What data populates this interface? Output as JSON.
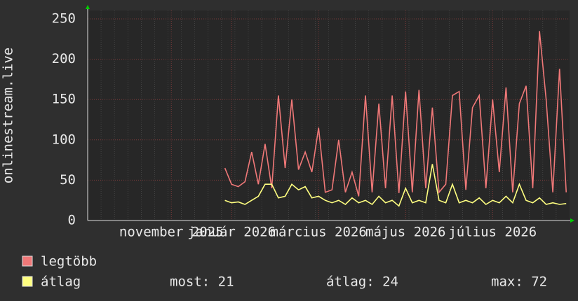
{
  "chart_data": {
    "type": "line",
    "ylabel": "onlinestream.live",
    "categories": [
      null,
      null,
      null,
      null,
      null,
      null,
      null,
      null,
      null,
      null,
      null,
      null,
      "november 2025",
      null,
      null,
      null,
      null,
      null,
      null,
      null,
      null,
      "január 2026",
      null,
      null,
      null,
      null,
      null,
      null,
      null,
      null,
      null,
      null,
      null,
      null,
      "március 2026",
      null,
      null,
      null,
      null,
      null,
      null,
      null,
      null,
      null,
      null,
      null,
      null,
      "május 2026",
      null,
      null,
      null,
      null,
      null,
      null,
      null,
      null,
      null,
      null,
      null,
      null,
      "július 2026",
      null,
      null,
      null,
      null,
      null,
      null,
      null,
      null,
      null,
      null,
      null
    ],
    "series": [
      {
        "name": "legtöbb",
        "color": "#f07878",
        "values": [
          null,
          null,
          null,
          null,
          null,
          null,
          null,
          null,
          null,
          null,
          null,
          null,
          null,
          null,
          null,
          null,
          null,
          null,
          null,
          null,
          65,
          45,
          42,
          48,
          85,
          45,
          95,
          40,
          155,
          65,
          150,
          63,
          85,
          60,
          115,
          35,
          38,
          100,
          35,
          60,
          30,
          155,
          35,
          145,
          40,
          155,
          34,
          160,
          35,
          162,
          40,
          140,
          35,
          45,
          155,
          160,
          38,
          140,
          155,
          40,
          150,
          60,
          165,
          35,
          145,
          167,
          40,
          235,
          150,
          35,
          188,
          35
        ]
      },
      {
        "name": "átlag",
        "color": "#ffff80",
        "values": [
          null,
          null,
          null,
          null,
          null,
          null,
          null,
          null,
          null,
          null,
          null,
          null,
          null,
          null,
          null,
          null,
          null,
          null,
          null,
          null,
          25,
          22,
          23,
          20,
          25,
          30,
          45,
          45,
          28,
          30,
          45,
          38,
          42,
          28,
          30,
          25,
          22,
          25,
          20,
          28,
          22,
          25,
          20,
          30,
          22,
          25,
          18,
          40,
          22,
          25,
          22,
          70,
          25,
          22,
          45,
          22,
          25,
          22,
          28,
          20,
          25,
          22,
          30,
          22,
          45,
          25,
          22,
          28,
          20,
          22,
          20,
          21
        ]
      }
    ],
    "stats": [
      "most: 21",
      "átlag: 24",
      "max: 72"
    ],
    "ylim": [
      0,
      250
    ],
    "yticks": [
      0,
      50,
      100,
      150,
      200,
      250
    ],
    "grid": true
  }
}
